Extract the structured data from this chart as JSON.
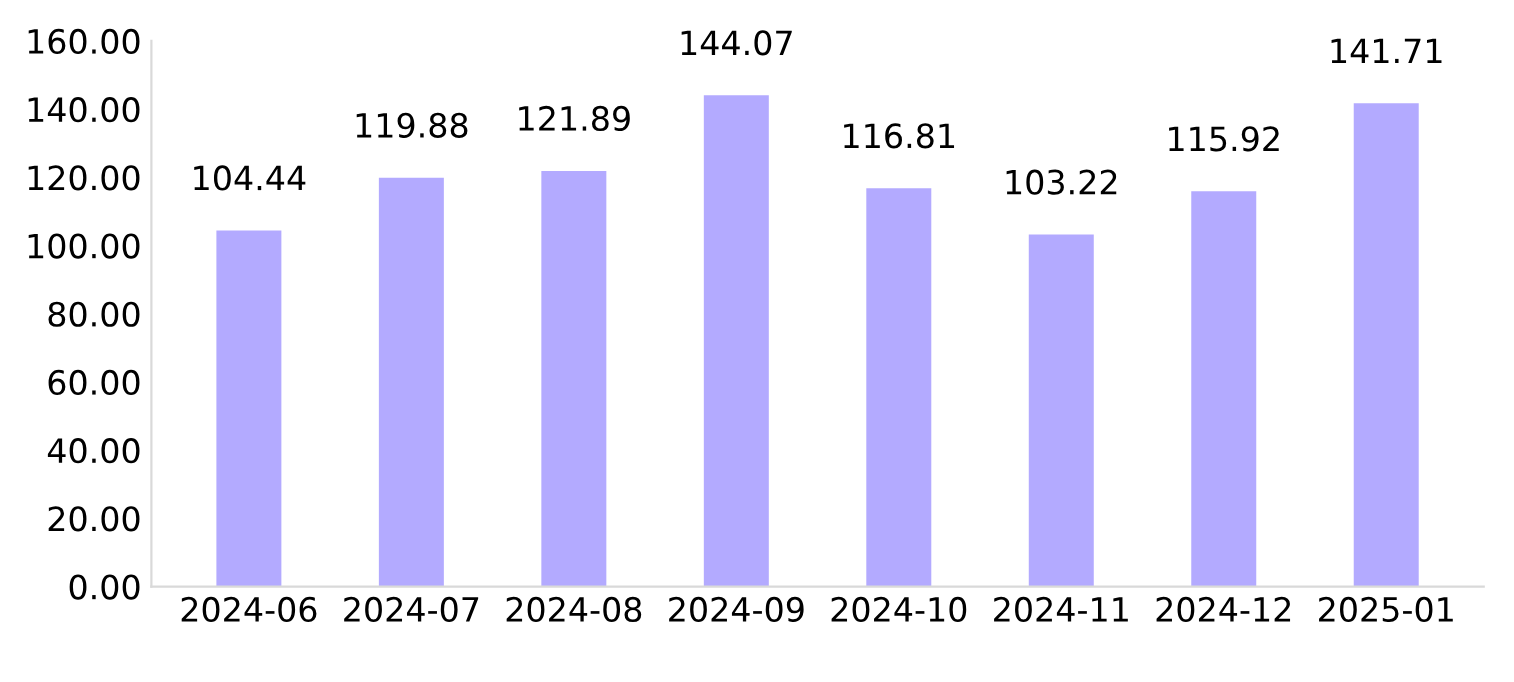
{
  "chart_data": {
    "type": "bar",
    "categories": [
      "2024-06",
      "2024-07",
      "2024-08",
      "2024-09",
      "2024-10",
      "2024-11",
      "2024-12",
      "2025-01"
    ],
    "values": [
      104.44,
      119.88,
      121.89,
      144.07,
      116.81,
      103.22,
      115.92,
      141.71
    ],
    "color": "#b3aaff",
    "ylim": [
      0,
      160
    ],
    "yticks": [
      {
        "value": 0,
        "label": "0.00"
      },
      {
        "value": 20,
        "label": "20.00"
      },
      {
        "value": 40,
        "label": "40.00"
      },
      {
        "value": 60,
        "label": "60.00"
      },
      {
        "value": 80,
        "label": "80.00"
      },
      {
        "value": 100,
        "label": "100.00"
      },
      {
        "value": 120,
        "label": "120.00"
      },
      {
        "value": 140,
        "label": "140.00"
      },
      {
        "value": 160,
        "label": "160.00"
      }
    ],
    "data_labels": true,
    "grid": false,
    "legend": false
  }
}
